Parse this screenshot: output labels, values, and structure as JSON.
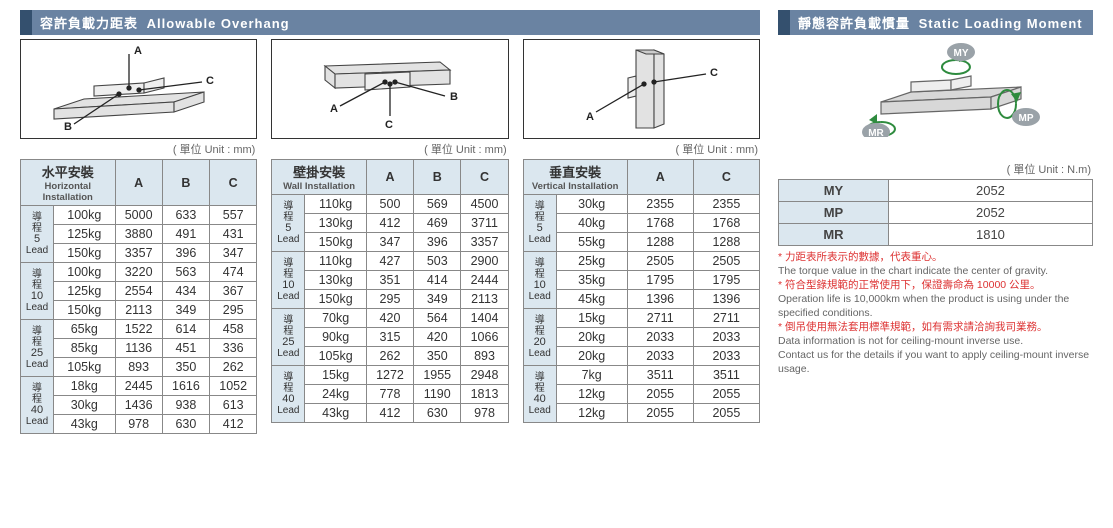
{
  "left": {
    "header_cn": "容許負載力距表",
    "header_en": "Allowable Overhang",
    "unit_label": "( 單位 Unit : mm)",
    "tables": [
      {
        "install_cn": "水平安裝",
        "install_en": "Horizontal Installation",
        "cols": [
          "A",
          "B",
          "C"
        ],
        "groups": [
          {
            "lead": "5",
            "rows": [
              [
                "100kg",
                "5000",
                "633",
                "557"
              ],
              [
                "125kg",
                "3880",
                "491",
                "431"
              ],
              [
                "150kg",
                "3357",
                "396",
                "347"
              ]
            ]
          },
          {
            "lead": "10",
            "rows": [
              [
                "100kg",
                "3220",
                "563",
                "474"
              ],
              [
                "125kg",
                "2554",
                "434",
                "367"
              ],
              [
                "150kg",
                "2113",
                "349",
                "295"
              ]
            ]
          },
          {
            "lead": "25",
            "rows": [
              [
                "65kg",
                "1522",
                "614",
                "458"
              ],
              [
                "85kg",
                "1136",
                "451",
                "336"
              ],
              [
                "105kg",
                "893",
                "350",
                "262"
              ]
            ]
          },
          {
            "lead": "40",
            "rows": [
              [
                "18kg",
                "2445",
                "1616",
                "1052"
              ],
              [
                "30kg",
                "1436",
                "938",
                "613"
              ],
              [
                "43kg",
                "978",
                "630",
                "412"
              ]
            ]
          }
        ]
      },
      {
        "install_cn": "壁掛安裝",
        "install_en": "Wall Installation",
        "cols": [
          "A",
          "B",
          "C"
        ],
        "groups": [
          {
            "lead": "5",
            "rows": [
              [
                "110kg",
                "500",
                "569",
                "4500"
              ],
              [
                "130kg",
                "412",
                "469",
                "3711"
              ],
              [
                "150kg",
                "347",
                "396",
                "3357"
              ]
            ]
          },
          {
            "lead": "10",
            "rows": [
              [
                "110kg",
                "427",
                "503",
                "2900"
              ],
              [
                "130kg",
                "351",
                "414",
                "2444"
              ],
              [
                "150kg",
                "295",
                "349",
                "2113"
              ]
            ]
          },
          {
            "lead": "25",
            "rows": [
              [
                "70kg",
                "420",
                "564",
                "1404"
              ],
              [
                "90kg",
                "315",
                "420",
                "1066"
              ],
              [
                "105kg",
                "262",
                "350",
                "893"
              ]
            ]
          },
          {
            "lead": "40",
            "rows": [
              [
                "15kg",
                "1272",
                "1955",
                "2948"
              ],
              [
                "24kg",
                "778",
                "1190",
                "1813"
              ],
              [
                "43kg",
                "412",
                "630",
                "978"
              ]
            ]
          }
        ]
      },
      {
        "install_cn": "垂直安裝",
        "install_en": "Vertical Installation",
        "cols": [
          "A",
          "C"
        ],
        "groups": [
          {
            "lead": "5",
            "rows": [
              [
                "30kg",
                "2355",
                "2355"
              ],
              [
                "40kg",
                "1768",
                "1768"
              ],
              [
                "55kg",
                "1288",
                "1288"
              ]
            ]
          },
          {
            "lead": "10",
            "rows": [
              [
                "25kg",
                "2505",
                "2505"
              ],
              [
                "35kg",
                "1795",
                "1795"
              ],
              [
                "45kg",
                "1396",
                "1396"
              ]
            ]
          },
          {
            "lead": "20",
            "rows": [
              [
                "15kg",
                "2711",
                "2711"
              ],
              [
                "20kg",
                "2033",
                "2033"
              ],
              [
                "20kg",
                "2033",
                "2033"
              ]
            ]
          },
          {
            "lead": "40",
            "rows": [
              [
                "7kg",
                "3511",
                "3511"
              ],
              [
                "12kg",
                "2055",
                "2055"
              ],
              [
                "12kg",
                "2055",
                "2055"
              ]
            ]
          }
        ]
      }
    ],
    "lead_label_cn": "導程",
    "lead_label_en": "Lead"
  },
  "right": {
    "header_cn": "靜態容許負載慣量",
    "header_en": "Static Loading Moment",
    "unit_label": "( 單位 Unit : N.m)",
    "rows": [
      [
        "MY",
        "2052"
      ],
      [
        "MP",
        "2052"
      ],
      [
        "MR",
        "1810"
      ]
    ],
    "moment_labels": [
      "MY",
      "MP",
      "MR"
    ],
    "notes": [
      {
        "red": true,
        "text": "* 力距表所表示的數據，代表重心。"
      },
      {
        "red": false,
        "text": "The torque value in the chart indicate the center of gravity."
      },
      {
        "red": true,
        "text": "* 符合型錄規範的正常使用下，保證壽命為 10000 公里。"
      },
      {
        "red": false,
        "text": "Operation life is 10,000km when the product is using under the specified conditions."
      },
      {
        "red": true,
        "text": "* 倒吊使用無法套用標準規範，如有需求請洽詢我司業務。"
      },
      {
        "red": false,
        "text": "Data information is not for ceiling-mount inverse use."
      },
      {
        "red": false,
        "text": "Contact us for the details if you want to apply ceiling-mount inverse usage."
      }
    ]
  }
}
